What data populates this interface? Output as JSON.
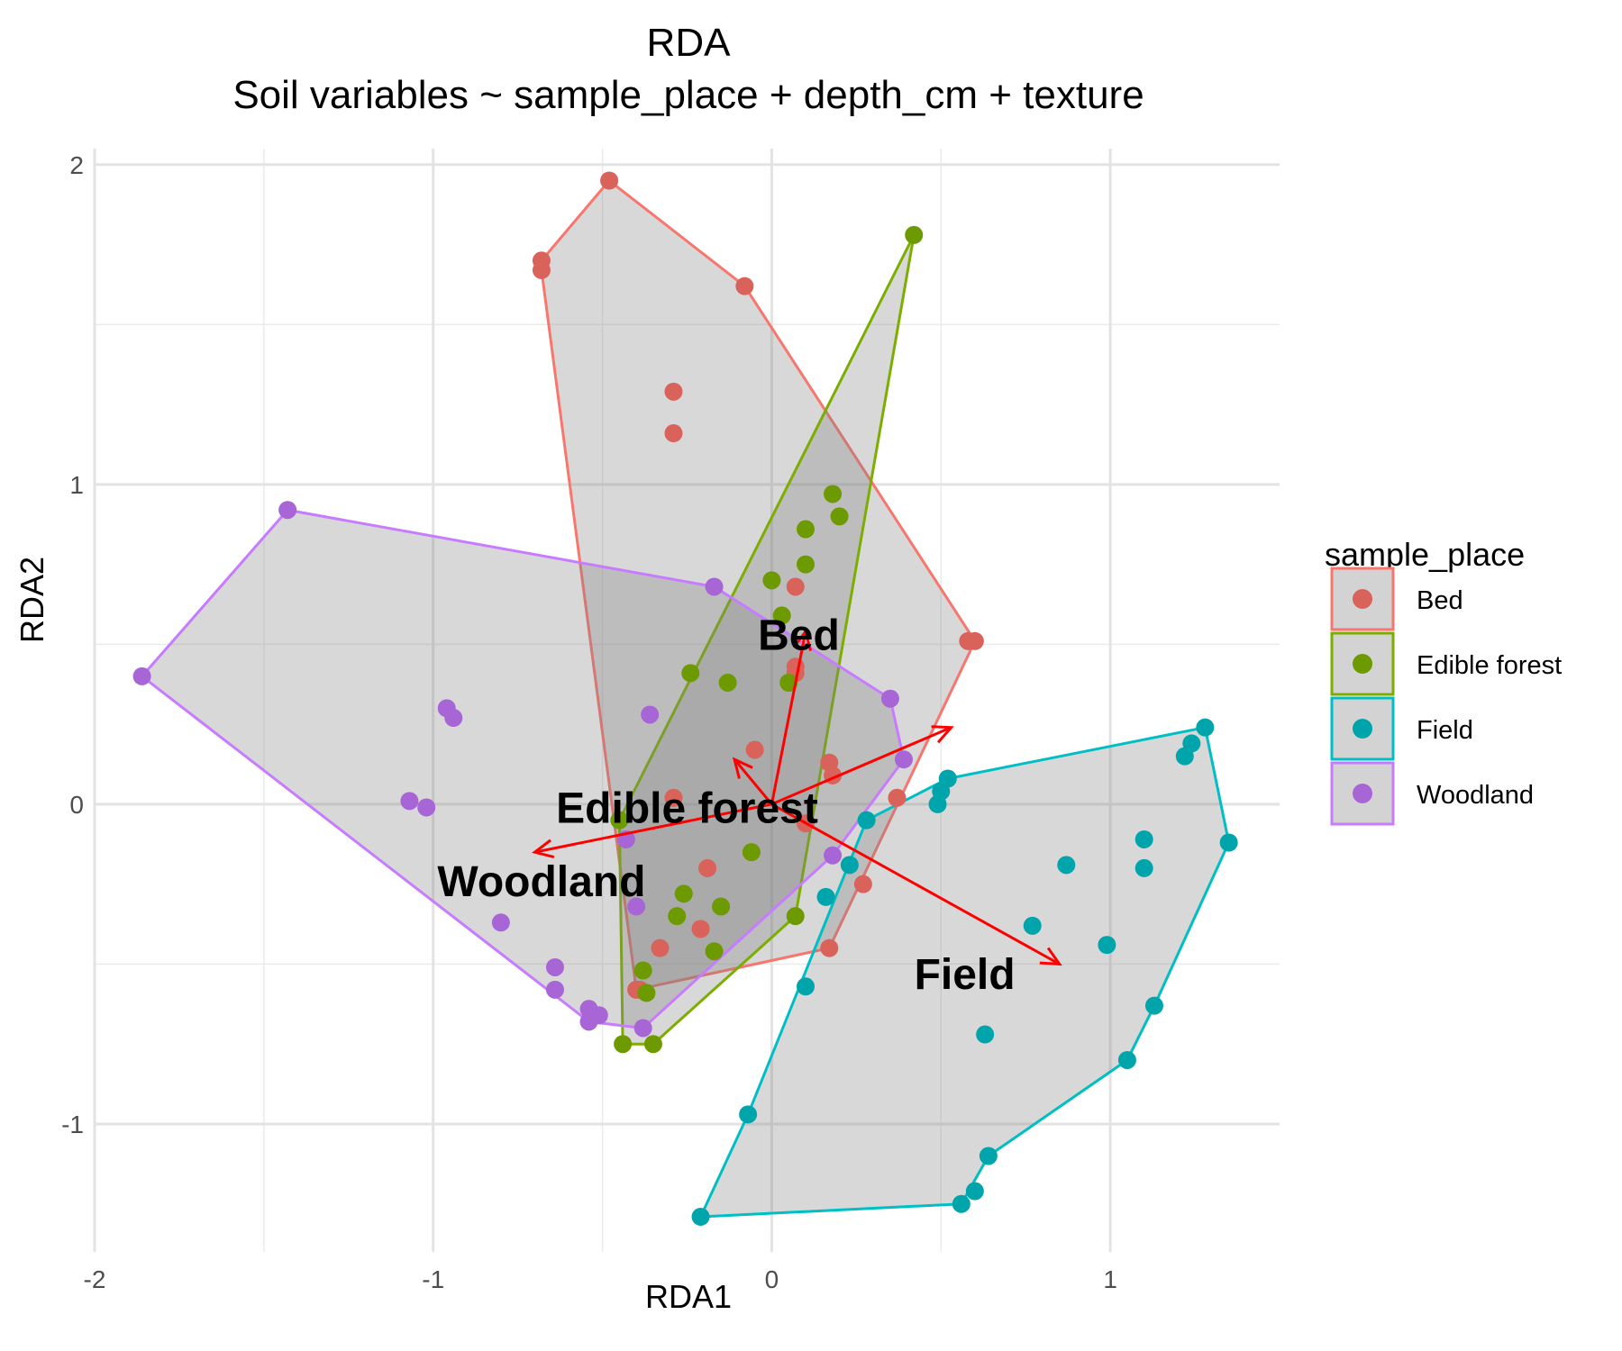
{
  "chart_data": {
    "type": "scatter",
    "title": "RDA",
    "subtitle": "Soil variables ~ sample_place + depth_cm + texture",
    "xlabel": "RDA1",
    "ylabel": "RDA2",
    "xlim": [
      -2.0,
      1.5
    ],
    "ylim": [
      -1.4,
      2.05
    ],
    "x_ticks": [
      -2,
      -1,
      0,
      1
    ],
    "x_tick_labels": [
      "-2",
      "-1",
      "0",
      "1"
    ],
    "y_ticks": [
      -1,
      0,
      1,
      2
    ],
    "y_tick_labels": [
      "-1",
      "0",
      "1",
      "2"
    ],
    "grid": true,
    "legend": {
      "title": "sample_place",
      "position": "right"
    },
    "series": [
      {
        "name": "Bed",
        "color": "#F8766D",
        "point_color": "#D9625A",
        "points": [
          [
            -0.48,
            1.95
          ],
          [
            -0.68,
            1.7
          ],
          [
            -0.68,
            1.67
          ],
          [
            -0.08,
            1.62
          ],
          [
            -0.29,
            1.29
          ],
          [
            -0.29,
            1.16
          ],
          [
            0.07,
            0.68
          ],
          [
            0.07,
            0.43
          ],
          [
            0.07,
            0.41
          ],
          [
            0.58,
            0.51
          ],
          [
            0.6,
            0.51
          ],
          [
            -0.05,
            0.17
          ],
          [
            0.17,
            0.13
          ],
          [
            0.18,
            0.09
          ],
          [
            -0.29,
            0.02
          ],
          [
            0.37,
            0.02
          ],
          [
            0.1,
            -0.06
          ],
          [
            -0.19,
            -0.2
          ],
          [
            0.27,
            -0.25
          ],
          [
            -0.21,
            -0.39
          ],
          [
            -0.33,
            -0.45
          ],
          [
            0.17,
            -0.45
          ],
          [
            -0.4,
            -0.58
          ],
          [
            -0.39,
            -0.58
          ]
        ],
        "hull": [
          [
            -0.48,
            1.95
          ],
          [
            -0.08,
            1.62
          ],
          [
            0.6,
            0.51
          ],
          [
            0.17,
            -0.45
          ],
          [
            -0.4,
            -0.58
          ],
          [
            -0.68,
            1.67
          ],
          [
            -0.68,
            1.7
          ]
        ]
      },
      {
        "name": "Edible forest",
        "color": "#7CAE00",
        "point_color": "#6C9A00",
        "points": [
          [
            0.42,
            1.78
          ],
          [
            0.18,
            0.97
          ],
          [
            0.2,
            0.9
          ],
          [
            0.1,
            0.86
          ],
          [
            0.1,
            0.75
          ],
          [
            0.0,
            0.7
          ],
          [
            0.03,
            0.59
          ],
          [
            -0.24,
            0.41
          ],
          [
            -0.13,
            0.38
          ],
          [
            0.05,
            0.38
          ],
          [
            -0.45,
            -0.05
          ],
          [
            -0.06,
            -0.15
          ],
          [
            -0.26,
            -0.28
          ],
          [
            -0.28,
            -0.35
          ],
          [
            -0.15,
            -0.32
          ],
          [
            0.07,
            -0.35
          ],
          [
            -0.17,
            -0.46
          ],
          [
            -0.38,
            -0.52
          ],
          [
            -0.37,
            -0.59
          ],
          [
            -0.44,
            -0.75
          ],
          [
            -0.35,
            -0.75
          ]
        ],
        "hull": [
          [
            0.42,
            1.78
          ],
          [
            0.07,
            -0.35
          ],
          [
            -0.35,
            -0.75
          ],
          [
            -0.44,
            -0.75
          ],
          [
            -0.45,
            -0.05
          ]
        ]
      },
      {
        "name": "Field",
        "color": "#00BFC4",
        "point_color": "#00A5AC",
        "points": [
          [
            1.28,
            0.24
          ],
          [
            1.24,
            0.19
          ],
          [
            1.22,
            0.15
          ],
          [
            0.52,
            0.08
          ],
          [
            0.5,
            0.04
          ],
          [
            0.49,
            0.0
          ],
          [
            0.28,
            -0.05
          ],
          [
            1.1,
            -0.11
          ],
          [
            1.35,
            -0.12
          ],
          [
            0.87,
            -0.19
          ],
          [
            1.1,
            -0.2
          ],
          [
            0.23,
            -0.19
          ],
          [
            0.16,
            -0.29
          ],
          [
            0.77,
            -0.38
          ],
          [
            0.99,
            -0.44
          ],
          [
            0.1,
            -0.57
          ],
          [
            1.13,
            -0.63
          ],
          [
            0.63,
            -0.72
          ],
          [
            1.05,
            -0.8
          ],
          [
            -0.07,
            -0.97
          ],
          [
            0.64,
            -1.1
          ],
          [
            0.6,
            -1.21
          ],
          [
            0.56,
            -1.25
          ],
          [
            -0.21,
            -1.29
          ]
        ],
        "hull": [
          [
            1.28,
            0.24
          ],
          [
            1.35,
            -0.12
          ],
          [
            1.13,
            -0.63
          ],
          [
            1.05,
            -0.8
          ],
          [
            0.64,
            -1.1
          ],
          [
            0.56,
            -1.25
          ],
          [
            -0.21,
            -1.29
          ],
          [
            -0.07,
            -0.97
          ],
          [
            0.28,
            -0.05
          ],
          [
            0.52,
            0.08
          ]
        ]
      },
      {
        "name": "Woodland",
        "color": "#C77CFF",
        "point_color": "#A865D6",
        "points": [
          [
            -1.43,
            0.92
          ],
          [
            -1.86,
            0.4
          ],
          [
            -0.17,
            0.68
          ],
          [
            -0.96,
            0.3
          ],
          [
            -0.94,
            0.27
          ],
          [
            -0.36,
            0.28
          ],
          [
            0.35,
            0.33
          ],
          [
            0.39,
            0.14
          ],
          [
            -1.07,
            0.01
          ],
          [
            -1.02,
            -0.01
          ],
          [
            -0.43,
            -0.11
          ],
          [
            0.18,
            -0.16
          ],
          [
            -0.4,
            -0.32
          ],
          [
            -0.8,
            -0.37
          ],
          [
            -0.64,
            -0.51
          ],
          [
            -0.64,
            -0.58
          ],
          [
            -0.54,
            -0.64
          ],
          [
            -0.51,
            -0.66
          ],
          [
            -0.54,
            -0.68
          ],
          [
            -0.38,
            -0.7
          ]
        ],
        "hull": [
          [
            -1.43,
            0.92
          ],
          [
            -0.17,
            0.68
          ],
          [
            0.35,
            0.33
          ],
          [
            0.39,
            0.14
          ],
          [
            0.18,
            -0.16
          ],
          [
            -0.38,
            -0.7
          ],
          [
            -0.54,
            -0.68
          ],
          [
            -1.86,
            0.4
          ]
        ]
      }
    ],
    "arrows": [
      {
        "label": "Bed",
        "x": 0.1,
        "y": 0.54,
        "label_x": 0.08,
        "label_y": 0.53
      },
      {
        "label": "Edible forest",
        "x": -0.11,
        "y": 0.14,
        "label_x": -0.25,
        "label_y": -0.01
      },
      {
        "label": "Field",
        "x": 0.85,
        "y": -0.5,
        "label_x": 0.57,
        "label_y": -0.53
      },
      {
        "label": "Woodland",
        "x": -0.7,
        "y": -0.15,
        "label_x": -0.68,
        "label_y": -0.24
      },
      {
        "label": "",
        "x": 0.53,
        "y": 0.24
      }
    ]
  }
}
